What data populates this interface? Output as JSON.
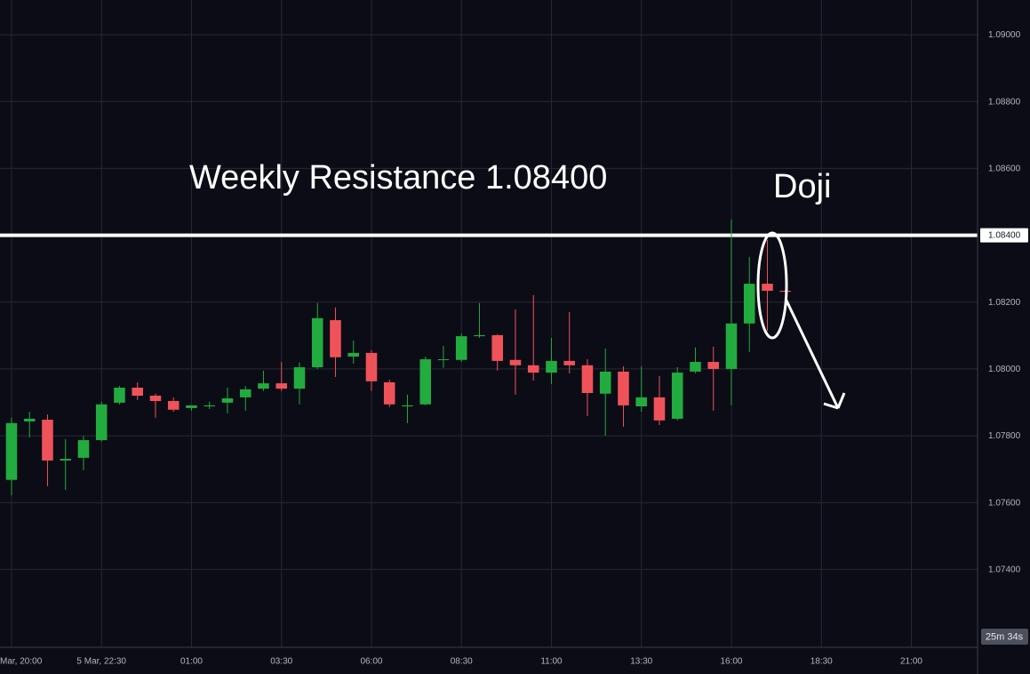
{
  "chart_data": {
    "type": "candlestick",
    "x": [
      0,
      1,
      2,
      3,
      4,
      5,
      6,
      7,
      8,
      9,
      10,
      11,
      12,
      13,
      14,
      15,
      16,
      17,
      18,
      19,
      20,
      21,
      22,
      23,
      24,
      25,
      26,
      27,
      28,
      29,
      30,
      31,
      32,
      33,
      34,
      35,
      36,
      37,
      38,
      39,
      40,
      41,
      42,
      43
    ],
    "open": [
      1.07668,
      1.07843,
      1.07848,
      1.07726,
      1.07734,
      1.07787,
      1.07899,
      1.07944,
      1.0792,
      1.07904,
      1.07883,
      1.07888,
      1.07899,
      1.07915,
      1.07941,
      1.07957,
      1.07941,
      1.08005,
      1.08146,
      1.08037,
      1.08048,
      1.0796,
      1.07888,
      1.07894,
      1.08027,
      1.08027,
      1.08098,
      1.08101,
      1.08027,
      1.08011,
      1.07989,
      1.08024,
      1.08011,
      1.07926,
      1.07992,
      1.07888,
      1.07915,
      1.07851,
      1.07992,
      1.08021,
      1.08,
      1.08136,
      1.08255,
      1.08234
    ],
    "high": [
      1.07854,
      1.07872,
      1.07864,
      1.0779,
      1.078,
      1.07902,
      1.07949,
      1.0796,
      1.07926,
      1.07915,
      1.07891,
      1.07902,
      1.07944,
      1.07949,
      1.07995,
      1.08021,
      1.08019,
      1.08197,
      1.08184,
      1.08085,
      1.08056,
      1.07968,
      1.07923,
      1.08037,
      1.08069,
      1.08106,
      1.08197,
      1.08104,
      1.08178,
      1.08221,
      1.08093,
      1.0817,
      1.08029,
      1.08061,
      1.08008,
      1.08008,
      1.07979,
      1.08005,
      1.08064,
      1.08067,
      1.08447,
      1.08335,
      1.08386,
      1.08237
    ],
    "low": [
      1.07622,
      1.07795,
      1.07649,
      1.07638,
      1.07697,
      1.07782,
      1.07894,
      1.07907,
      1.07854,
      1.07872,
      1.07875,
      1.0788,
      1.07867,
      1.07875,
      1.07934,
      1.07934,
      1.07894,
      1.08,
      1.07976,
      1.08016,
      1.07934,
      1.07886,
      1.07838,
      1.07891,
      1.08003,
      1.08021,
      1.08093,
      1.07995,
      1.07923,
      1.07965,
      1.07955,
      1.07987,
      1.07859,
      1.078,
      1.07827,
      1.07872,
      1.07832,
      1.07846,
      1.07987,
      1.07875,
      1.07891,
      1.08051,
      1.08114,
      1.08229
    ],
    "close": [
      1.07838,
      1.07851,
      1.07726,
      1.07731,
      1.07787,
      1.07894,
      1.07944,
      1.0792,
      1.07904,
      1.07878,
      1.07891,
      1.07891,
      1.07912,
      1.07939,
      1.07957,
      1.07941,
      1.08005,
      1.08152,
      1.08035,
      1.08048,
      1.07963,
      1.07894,
      1.07891,
      1.08029,
      1.08029,
      1.08098,
      1.08101,
      1.08024,
      1.08011,
      1.07989,
      1.08024,
      1.08011,
      1.07928,
      1.07992,
      1.07891,
      1.07915,
      1.07846,
      1.07989,
      1.08021,
      1.08,
      1.08136,
      1.08255,
      1.08234,
      1.08231
    ],
    "up_color": "#22ab3f",
    "down_color": "#f0525a",
    "xlim": [
      -0.64,
      53.68
    ],
    "ylim": [
      1.07167,
      1.09104
    ],
    "xticks": [
      {
        "value": 0,
        "label": "Mar, 20:00"
      },
      {
        "value": 5,
        "label": "5 Mar, 22:30"
      },
      {
        "value": 10,
        "label": "01:00"
      },
      {
        "value": 15,
        "label": "03:30"
      },
      {
        "value": 20,
        "label": "06:00"
      },
      {
        "value": 25,
        "label": "08:30"
      },
      {
        "value": 30,
        "label": "11:00"
      },
      {
        "value": 35,
        "label": "13:30"
      },
      {
        "value": 40,
        "label": "16:00"
      },
      {
        "value": 45,
        "label": "18:30"
      },
      {
        "value": 50,
        "label": "21:00"
      }
    ],
    "yticks": [
      {
        "value": 1.074,
        "label": "1.07400"
      },
      {
        "value": 1.076,
        "label": "1.07600"
      },
      {
        "value": 1.078,
        "label": "1.07800"
      },
      {
        "value": 1.08,
        "label": "1.08000"
      },
      {
        "value": 1.082,
        "label": "1.08200"
      },
      {
        "value": 1.084,
        "label": "1.08400"
      },
      {
        "value": 1.086,
        "label": "1.08600"
      },
      {
        "value": 1.088,
        "label": "1.08800"
      },
      {
        "value": 1.09,
        "label": "1.09000"
      }
    ],
    "grid": true,
    "resistance": 1.084,
    "annotations": [
      "Weekly Resistance 1.08400",
      "Doji"
    ],
    "countdown": "25m 34s"
  }
}
